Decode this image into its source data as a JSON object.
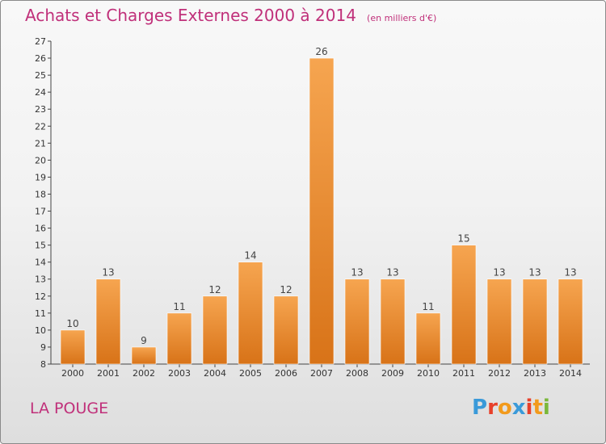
{
  "title": "Achats et Charges Externes 2000 à 2014",
  "subtitle": "(en milliers d'€)",
  "place": "LA POUGE",
  "logo": {
    "text": "Proxiti",
    "colors": [
      "#3a9ad9",
      "#e8402a",
      "#f29a1c",
      "#3a9ad9",
      "#e8402a",
      "#f29a1c",
      "#7ab83a"
    ]
  },
  "chart_data": {
    "type": "bar",
    "categories": [
      "2000",
      "2001",
      "2002",
      "2003",
      "2004",
      "2005",
      "2006",
      "2007",
      "2008",
      "2009",
      "2010",
      "2011",
      "2012",
      "2013",
      "2014"
    ],
    "values": [
      10,
      13,
      9,
      11,
      12,
      14,
      12,
      26,
      13,
      13,
      11,
      15,
      13,
      13,
      13
    ],
    "ylim": [
      8,
      27
    ],
    "yticks": [
      8,
      9,
      10,
      11,
      12,
      13,
      14,
      15,
      16,
      17,
      18,
      19,
      20,
      21,
      22,
      23,
      24,
      25,
      26,
      27
    ],
    "grid": false,
    "bar_color": "#f0963a"
  }
}
